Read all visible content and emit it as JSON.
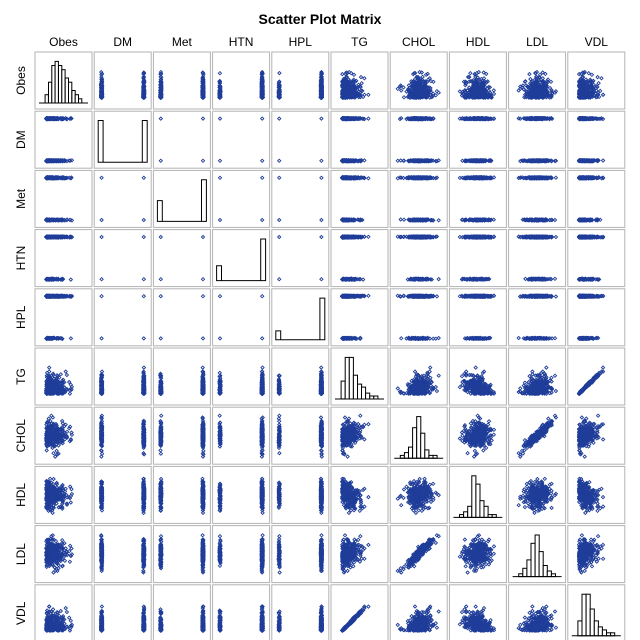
{
  "chart_data": {
    "type": "scatter",
    "title": "Scatter Plot Matrix",
    "variables": [
      "Obes",
      "DM",
      "Met",
      "HTN",
      "HPL",
      "TG",
      "CHOL",
      "HDL",
      "LDL",
      "VDL"
    ],
    "binary_variables": [
      "DM",
      "Met",
      "HTN",
      "HPL"
    ],
    "diagonal": "histogram",
    "marker": "diamond",
    "marker_color": "#1f3d99",
    "frame_color": "#b3b3b3",
    "n_points": 300,
    "histograms": {
      "Obes": [
        2,
        5,
        9,
        10,
        9,
        8,
        6,
        5,
        3,
        2,
        1
      ],
      "DM": [
        10,
        0,
        0,
        0,
        0,
        0,
        0,
        0,
        0,
        10
      ],
      "Met": [
        8,
        0,
        0,
        0,
        0,
        0,
        0,
        0,
        0,
        16
      ],
      "HTN": [
        5,
        0,
        0,
        0,
        0,
        0,
        0,
        0,
        0,
        14
      ],
      "HPL": [
        3,
        0,
        0,
        0,
        0,
        0,
        0,
        0,
        0,
        14
      ],
      "TG": [
        6,
        14,
        14,
        8,
        5,
        4,
        2,
        1,
        1
      ],
      "CHOL": [
        1,
        2,
        4,
        11,
        15,
        9,
        3,
        1,
        1
      ],
      "HDL": [
        1,
        2,
        4,
        15,
        12,
        6,
        4,
        1,
        1
      ],
      "LDL": [
        1,
        3,
        6,
        12,
        15,
        9,
        4,
        2,
        1
      ],
      "VDL": [
        5,
        14,
        14,
        9,
        5,
        3,
        2,
        1,
        1
      ]
    },
    "correlations": [
      {
        "x": "TG",
        "y": "VDL",
        "r": 0.99
      },
      {
        "x": "CHOL",
        "y": "LDL",
        "r": 0.93
      },
      {
        "x": "TG",
        "y": "HDL",
        "r": -0.35
      },
      {
        "x": "VDL",
        "y": "HDL",
        "r": -0.35
      },
      {
        "x": "CHOL",
        "y": "TG",
        "r": 0.3
      },
      {
        "x": "CHOL",
        "y": "VDL",
        "r": 0.3
      },
      {
        "x": "CHOL",
        "y": "HDL",
        "r": 0.2
      },
      {
        "x": "LDL",
        "y": "TG",
        "r": 0.15
      },
      {
        "x": "LDL",
        "y": "VDL",
        "r": 0.15
      }
    ]
  }
}
